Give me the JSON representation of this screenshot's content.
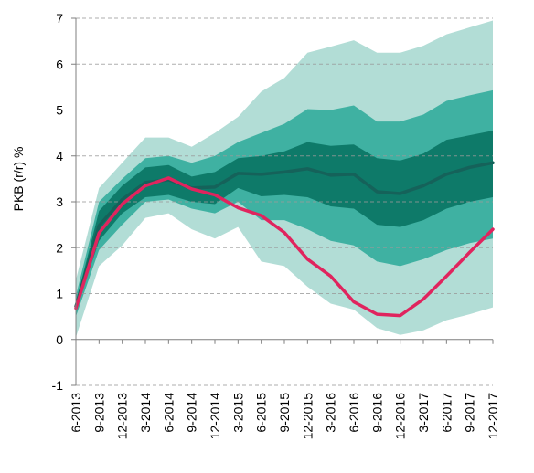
{
  "chart_data": {
    "type": "area",
    "title": "",
    "xlabel": "",
    "ylabel": "PKB (r/r) %",
    "ylim": [
      -1,
      7
    ],
    "yticks": [
      -1,
      0,
      1,
      2,
      3,
      4,
      5,
      6,
      7
    ],
    "categories": [
      "6-2013",
      "9-2013",
      "12-2013",
      "3-2014",
      "6-2014",
      "9-2014",
      "12-2014",
      "3-2015",
      "6-2015",
      "9-2015",
      "12-2015",
      "3-2016",
      "6-2016",
      "9-2016",
      "12-2016",
      "3-2017",
      "6-2017",
      "9-2017",
      "12-2017"
    ],
    "bands": [
      {
        "level": "outer",
        "color": "#b2ddd6",
        "lower": [
          0.05,
          1.6,
          2.05,
          2.65,
          2.75,
          2.4,
          2.2,
          2.45,
          1.7,
          1.6,
          1.15,
          0.78,
          0.65,
          0.25,
          0.1,
          0.2,
          0.42,
          0.55,
          0.7
        ],
        "upper": [
          1.3,
          3.3,
          3.85,
          4.4,
          4.4,
          4.2,
          4.5,
          4.85,
          5.4,
          5.7,
          6.25,
          6.38,
          6.52,
          6.25,
          6.25,
          6.4,
          6.65,
          6.8,
          6.95
        ]
      },
      {
        "level": "middle",
        "color": "#3fb1a2",
        "lower": [
          0.5,
          1.95,
          2.5,
          3.0,
          3.05,
          2.85,
          2.75,
          3.0,
          2.6,
          2.6,
          2.4,
          2.15,
          2.05,
          1.7,
          1.6,
          1.75,
          1.95,
          2.1,
          2.2
        ]
      },
      {
        "level": "middle",
        "upper": [
          0.95,
          3.0,
          3.5,
          3.95,
          4.0,
          3.85,
          4.0,
          4.3,
          4.5,
          4.7,
          5.02,
          5.0,
          5.1,
          4.75,
          4.75,
          4.9,
          5.2,
          5.32,
          5.43
        ]
      },
      {
        "level": "inner",
        "color": "#0e7a69",
        "lower": [
          0.65,
          2.15,
          2.75,
          3.1,
          3.15,
          3.0,
          2.95,
          3.3,
          3.12,
          3.15,
          3.1,
          2.9,
          2.85,
          2.5,
          2.45,
          2.6,
          2.85,
          3.0,
          3.1
        ],
        "upper": [
          0.8,
          2.8,
          3.35,
          3.75,
          3.8,
          3.55,
          3.65,
          3.95,
          4.0,
          4.1,
          4.3,
          4.22,
          4.25,
          3.95,
          3.9,
          4.05,
          4.35,
          4.45,
          4.55
        ]
      }
    ],
    "series": [
      {
        "color": "#15625a",
        "values": [
          0.72,
          2.48,
          3.05,
          3.42,
          3.48,
          3.3,
          3.32,
          3.62,
          3.6,
          3.65,
          3.72,
          3.58,
          3.6,
          3.22,
          3.18,
          3.35,
          3.6,
          3.75,
          3.85
        ]
      },
      {
        "color": "#e0245e",
        "values": [
          0.68,
          2.32,
          2.95,
          3.35,
          3.52,
          3.28,
          3.15,
          2.87,
          2.7,
          2.33,
          1.75,
          1.38,
          0.82,
          0.55,
          0.52,
          0.88,
          1.38,
          1.9,
          2.4
        ]
      }
    ],
    "grid": "horizontal dashed",
    "legend": "none"
  }
}
